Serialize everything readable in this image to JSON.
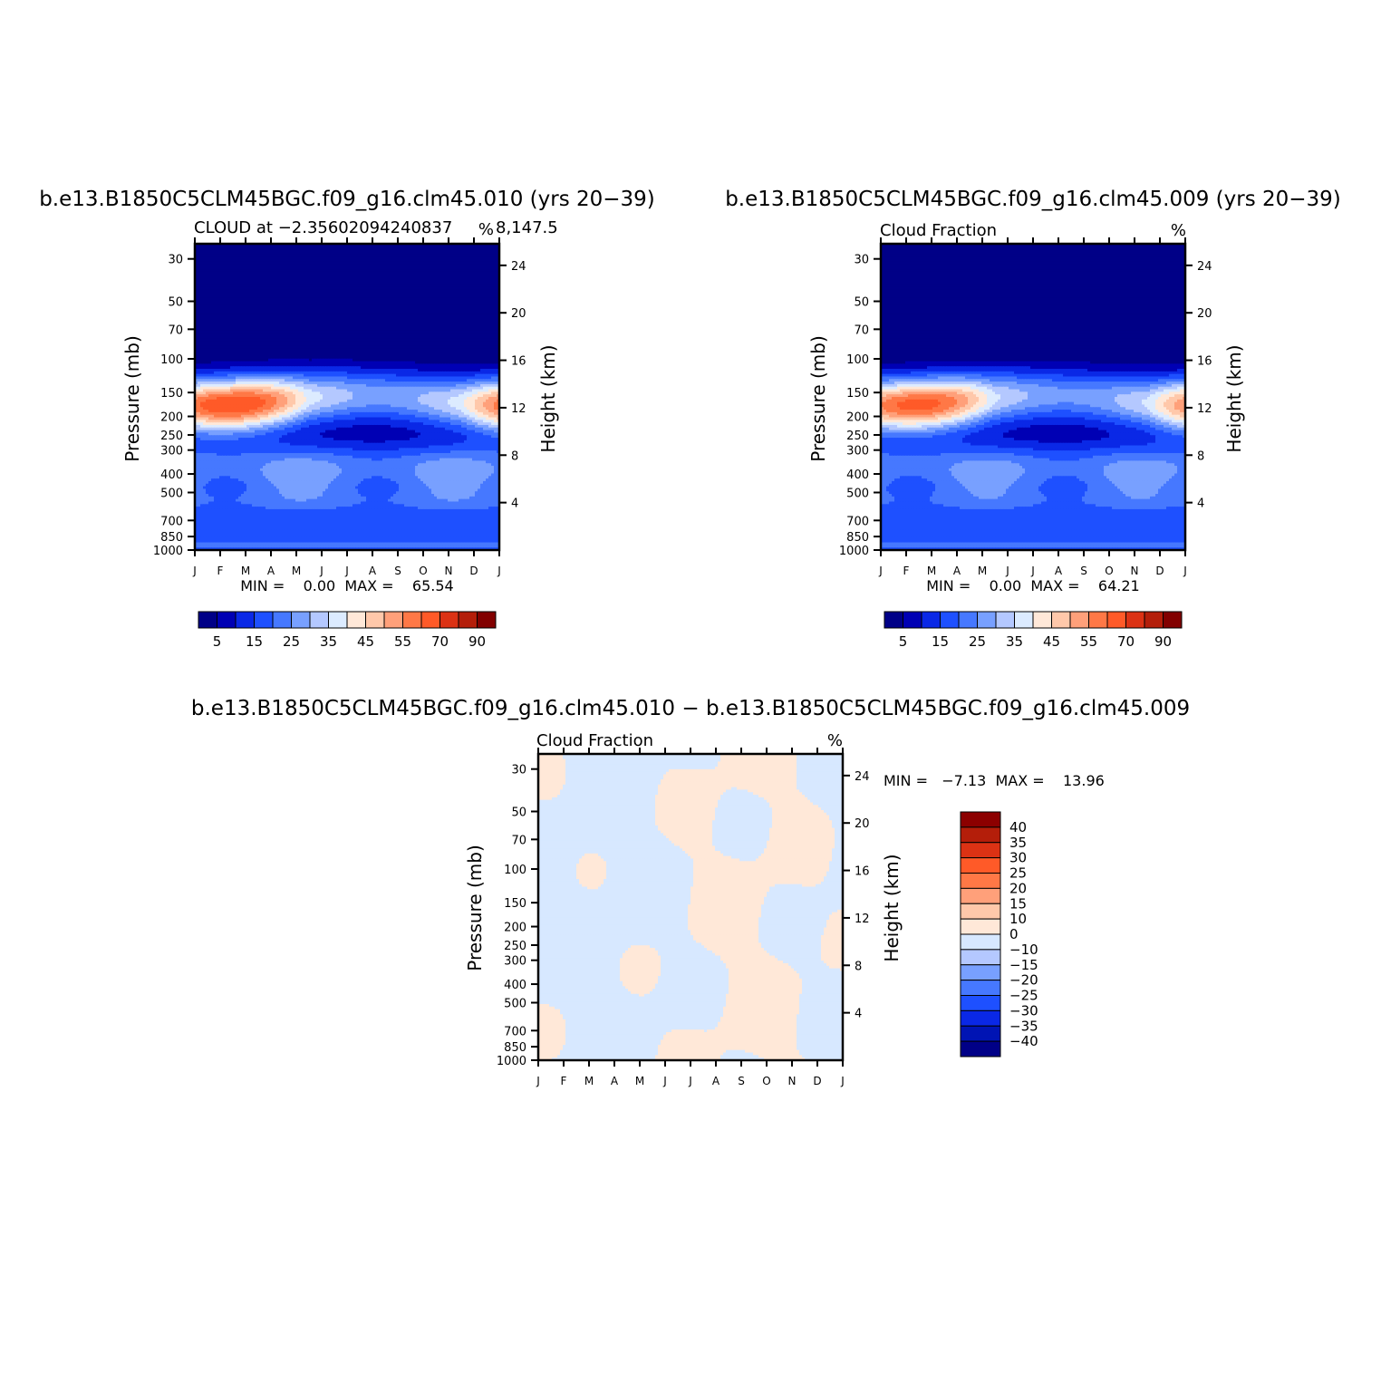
{
  "colors": {
    "levels15": [
      "#000087",
      "#0000b4",
      "#0a28e6",
      "#1e50ff",
      "#4678ff",
      "#78a0ff",
      "#b4c8ff",
      "#dcebff",
      "#ffe8d8",
      "#ffc8aa",
      "#ffa07a",
      "#ff7846",
      "#ff5a28",
      "#dc3214",
      "#b41e0a",
      "#820000"
    ],
    "diff_levels": [
      "#000087",
      "#0014b4",
      "#0a28e6",
      "#1e50ff",
      "#4678ff",
      "#78a0ff",
      "#b4c8ff",
      "#d7e8ff",
      "#ffe8d8",
      "#ffc8aa",
      "#ffa07a",
      "#ff7846",
      "#ff5a28",
      "#dc3214",
      "#b41e0a",
      "#8c0000"
    ]
  },
  "chart_data": [
    {
      "type": "heatmap",
      "title": "b.e13.B1850C5CLM45BGC.f09_g16.clm45.010 (yrs 20−39)",
      "subtitle_left": "CLOUD at −2.35602094240837",
      "subtitle_right": "%",
      "subtitle_right2": "8,147.5",
      "ylabel": "Pressure (mb)",
      "ylabel_right": "Height (km)",
      "x_ticks": [
        "J",
        "F",
        "M",
        "A",
        "M",
        "J",
        "J",
        "A",
        "S",
        "O",
        "N",
        "D",
        "J"
      ],
      "y_ticks": [
        "30",
        "50",
        "70",
        "100",
        "150",
        "200",
        "250",
        "300",
        "400",
        "500",
        "700",
        "850",
        "1000"
      ],
      "y_ticks_right": [
        "24",
        "20",
        "16",
        "12",
        "8",
        "4"
      ],
      "stats": "MIN =    0.00  MAX =    65.54",
      "colorbar_labels": [
        "5",
        "15",
        "25",
        "35",
        "45",
        "55",
        "70",
        "90"
      ],
      "ylim": [
        1000,
        25
      ]
    },
    {
      "type": "heatmap",
      "title": "b.e13.B1850C5CLM45BGC.f09_g16.clm45.009 (yrs 20−39)",
      "subtitle_left": "Cloud Fraction",
      "subtitle_right": "%",
      "ylabel": "Pressure (mb)",
      "ylabel_right": "Height (km)",
      "x_ticks": [
        "J",
        "F",
        "M",
        "A",
        "M",
        "J",
        "J",
        "A",
        "S",
        "O",
        "N",
        "D",
        "J"
      ],
      "y_ticks": [
        "30",
        "50",
        "70",
        "100",
        "150",
        "200",
        "250",
        "300",
        "400",
        "500",
        "700",
        "850",
        "1000"
      ],
      "y_ticks_right": [
        "24",
        "20",
        "16",
        "12",
        "8",
        "4"
      ],
      "stats": "MIN =    0.00  MAX =    64.21",
      "colorbar_labels": [
        "5",
        "15",
        "25",
        "35",
        "45",
        "55",
        "70",
        "90"
      ],
      "ylim": [
        1000,
        25
      ]
    },
    {
      "type": "heatmap",
      "title": "b.e13.B1850C5CLM45BGC.f09_g16.clm45.010 − b.e13.B1850C5CLM45BGC.f09_g16.clm45.009",
      "subtitle_left": "Cloud Fraction",
      "subtitle_right": "%",
      "ylabel": "Pressure (mb)",
      "ylabel_right": "Height (km)",
      "x_ticks": [
        "J",
        "F",
        "M",
        "A",
        "M",
        "J",
        "J",
        "A",
        "S",
        "O",
        "N",
        "D",
        "J"
      ],
      "y_ticks": [
        "30",
        "50",
        "70",
        "100",
        "150",
        "200",
        "250",
        "300",
        "400",
        "500",
        "700",
        "850",
        "1000"
      ],
      "y_ticks_right": [
        "24",
        "20",
        "16",
        "12",
        "8",
        "4"
      ],
      "stats": "MIN =   −7.13  MAX =    13.96",
      "colorbar_labels": [
        "40",
        "35",
        "30",
        "25",
        "20",
        "15",
        "10",
        "0",
        "−10",
        "−15",
        "−20",
        "−25",
        "−30",
        "−35",
        "−40"
      ],
      "ylim": [
        1000,
        25
      ]
    }
  ]
}
